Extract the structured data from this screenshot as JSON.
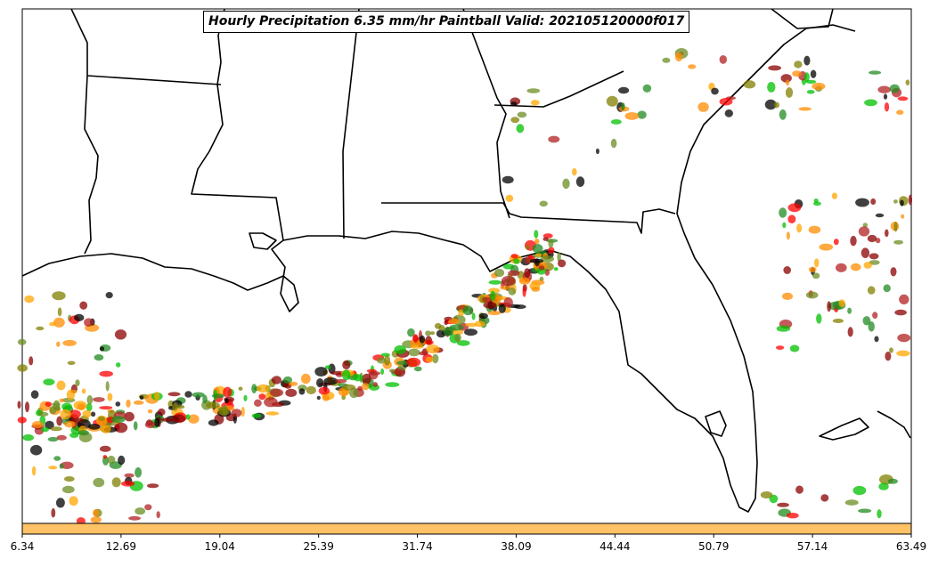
{
  "title": "Hourly Precipitation 6.35 mm/hr Paintball Valid: 202105120000f017",
  "colorbar": {
    "fill_color": "#ffc266",
    "tick_labels": [
      "6.34",
      "12.69",
      "19.04",
      "25.39",
      "31.74",
      "38.09",
      "44.44",
      "50.79",
      "57.14",
      "63.49"
    ]
  },
  "member_colors": [
    "#ff8c00",
    "#ff0000",
    "#8b0000",
    "#228b22",
    "#00c000",
    "#808000",
    "#000000",
    "#ffa500",
    "#b22222",
    "#6b8e23"
  ],
  "map": {
    "land_color": "#ffffff",
    "boundary_color": "#000000"
  }
}
